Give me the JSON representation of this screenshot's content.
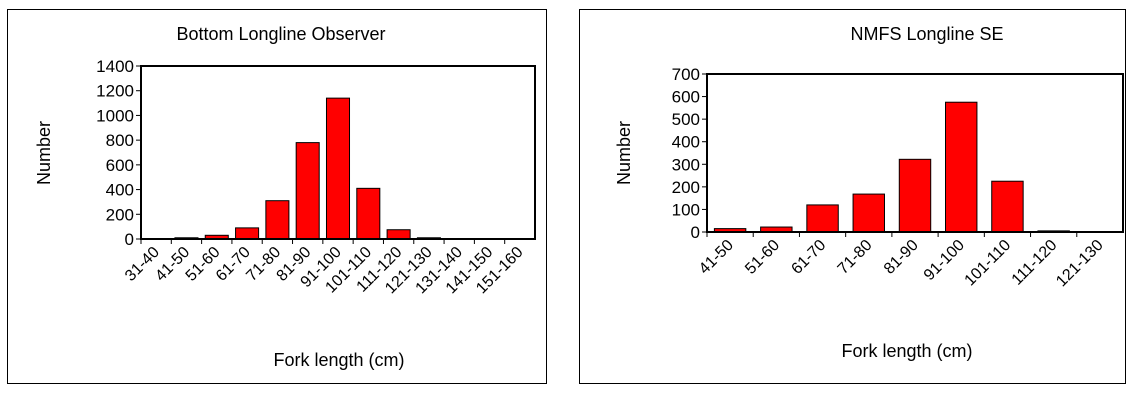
{
  "chart_data": [
    {
      "type": "bar",
      "title": "Bottom Longline Observer",
      "xlabel": "Fork length (cm)",
      "ylabel": "Number",
      "ylim": [
        0,
        1400
      ],
      "yticks": [
        "0",
        "200",
        "400",
        "600",
        "800",
        "1000",
        "1200",
        "1400"
      ],
      "categories": [
        "31-40",
        "41-50",
        "51-60",
        "61-70",
        "71-80",
        "81-90",
        "91-100",
        "101-110",
        "111-120",
        "121-130",
        "131-140",
        "141-150",
        "151-160"
      ],
      "values": [
        2,
        10,
        30,
        90,
        310,
        780,
        1140,
        410,
        75,
        10,
        2,
        1,
        0
      ],
      "bar_color": "#ff0000",
      "grid": false,
      "legend": "none"
    },
    {
      "type": "bar",
      "title": "NMFS Longline SE",
      "xlabel": "Fork length (cm)",
      "ylabel": "Number",
      "ylim": [
        0,
        700
      ],
      "yticks": [
        "0",
        "100",
        "200",
        "300",
        "400",
        "500",
        "600",
        "700"
      ],
      "categories": [
        "41-50",
        "51-60",
        "61-70",
        "71-80",
        "81-90",
        "91-100",
        "101-110",
        "111-120",
        "121-130"
      ],
      "values": [
        15,
        22,
        120,
        168,
        322,
        575,
        225,
        5,
        2
      ],
      "bar_color": "#ff0000",
      "grid": false,
      "legend": "none"
    }
  ]
}
